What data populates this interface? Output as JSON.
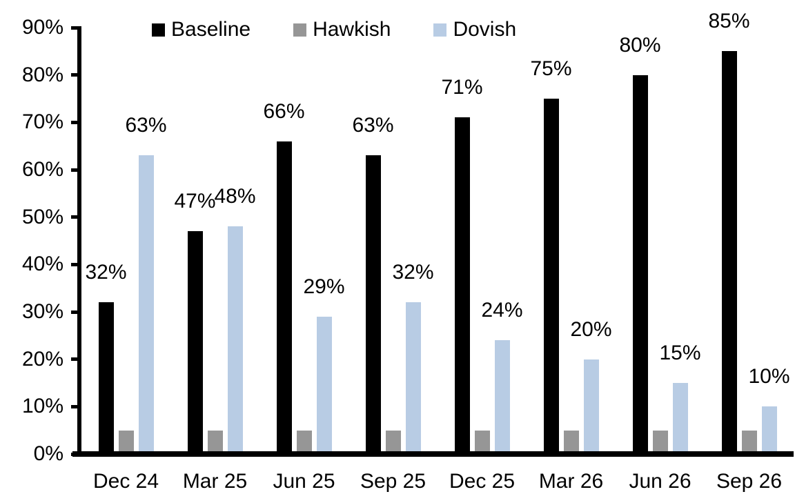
{
  "chart_data": {
    "type": "bar",
    "title": "",
    "xlabel": "",
    "ylabel": "",
    "categories": [
      "Dec 24",
      "Mar 25",
      "Jun 25",
      "Sep 25",
      "Dec 25",
      "Mar 26",
      "Jun 26",
      "Sep 26"
    ],
    "series": [
      {
        "name": "Baseline",
        "color": "#000000",
        "values": [
          32,
          47,
          66,
          63,
          71,
          75,
          80,
          85
        ],
        "data_labels": [
          "32%",
          "47%",
          "66%",
          "63%",
          "71%",
          "75%",
          "80%",
          "85%"
        ]
      },
      {
        "name": "Hawkish",
        "color": "#969696",
        "values": [
          5,
          5,
          5,
          5,
          5,
          5,
          5,
          5
        ],
        "data_labels": [
          "",
          "",
          "",
          "",
          "",
          "",
          "",
          ""
        ]
      },
      {
        "name": "Dovish",
        "color": "#B8CCE4",
        "values": [
          63,
          48,
          29,
          32,
          24,
          20,
          15,
          10
        ],
        "data_labels": [
          "63%",
          "48%",
          "29%",
          "32%",
          "24%",
          "20%",
          "15%",
          "10%"
        ]
      }
    ],
    "ylim": [
      0,
      90
    ],
    "ytick_labels": [
      "0%",
      "10%",
      "20%",
      "30%",
      "40%",
      "50%",
      "60%",
      "70%",
      "80%",
      "90%"
    ],
    "grid": false,
    "legend_position": "top",
    "axis_color": "#000000",
    "background_color": "#ffffff"
  }
}
